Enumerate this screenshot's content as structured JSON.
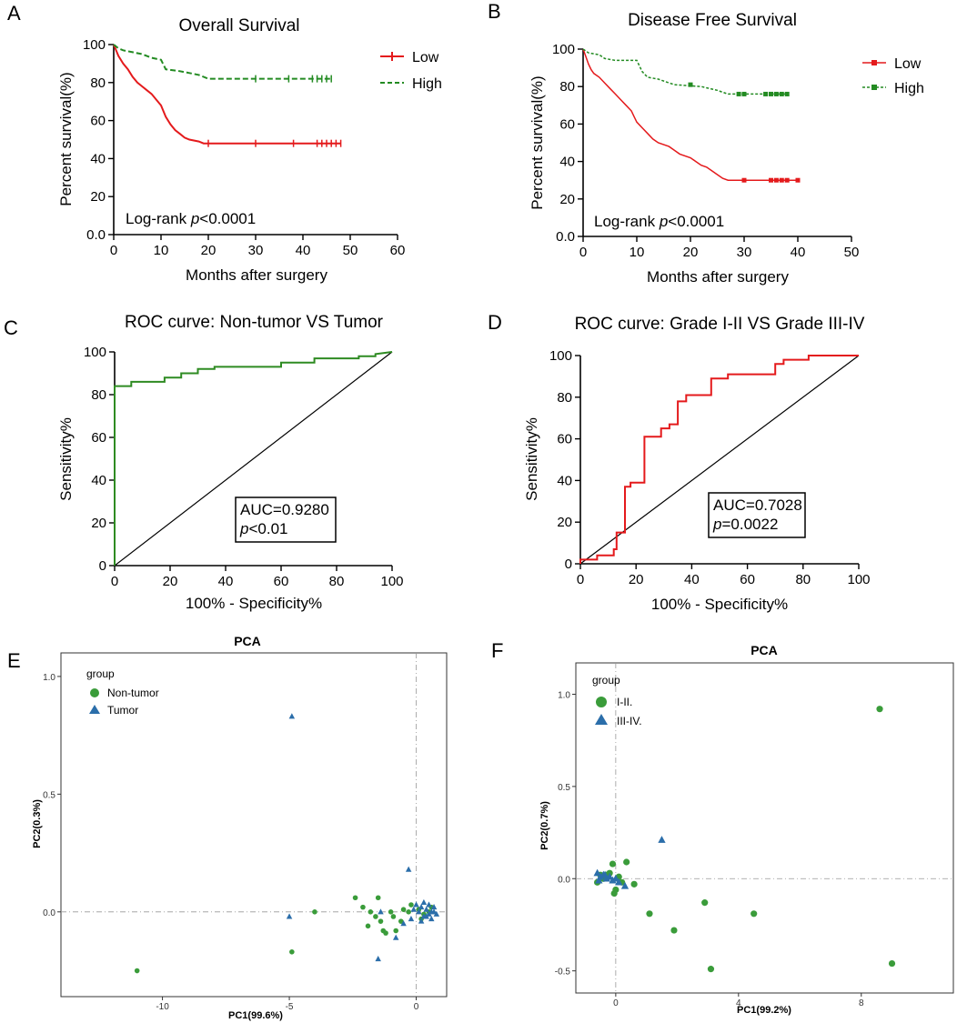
{
  "chart_data": [
    {
      "panel": "A",
      "type": "line",
      "subtype": "kaplan-meier",
      "title": "Overall Survival",
      "xlabel": "Months after surgery",
      "ylabel": "Percent survival(%)",
      "xlim": [
        0,
        60
      ],
      "ylim": [
        0,
        100
      ],
      "xticks": [
        "0",
        "10",
        "20",
        "30",
        "40",
        "50",
        "60"
      ],
      "yticks": [
        "0.0",
        "20",
        "40",
        "60",
        "80",
        "100"
      ],
      "annotation_prefix": "Log-rank ",
      "annotation_p": "p",
      "annotation_value": "<0.0001",
      "legend": [
        "Low",
        "High"
      ],
      "series": [
        {
          "name": "Low",
          "color": "#e41a1c",
          "dashed": false,
          "points": [
            [
              0,
              100
            ],
            [
              0.5,
              97
            ],
            [
              1,
              94
            ],
            [
              2,
              90
            ],
            [
              3,
              87
            ],
            [
              4,
              83
            ],
            [
              5,
              80
            ],
            [
              6,
              78
            ],
            [
              7,
              76
            ],
            [
              8,
              74
            ],
            [
              9,
              71
            ],
            [
              10,
              68
            ],
            [
              11,
              62
            ],
            [
              12,
              58
            ],
            [
              13,
              55
            ],
            [
              14,
              53
            ],
            [
              15,
              51
            ],
            [
              16,
              50
            ],
            [
              18,
              49
            ],
            [
              19,
              48
            ],
            [
              20,
              48
            ],
            [
              48,
              48
            ]
          ],
          "censor": [
            20,
            30,
            38,
            43,
            44,
            45,
            46,
            47,
            48
          ]
        },
        {
          "name": "High",
          "color": "#238b22",
          "dashed": true,
          "points": [
            [
              0,
              100
            ],
            [
              1,
              98
            ],
            [
              2,
              97
            ],
            [
              4,
              96
            ],
            [
              6,
              95
            ],
            [
              8,
              93
            ],
            [
              10,
              92
            ],
            [
              11,
              87
            ],
            [
              14,
              86
            ],
            [
              16,
              85
            ],
            [
              18,
              84
            ],
            [
              19,
              83
            ],
            [
              20,
              82
            ],
            [
              46,
              82
            ]
          ],
          "censor": [
            30,
            37,
            42,
            43,
            44,
            45,
            46
          ]
        }
      ]
    },
    {
      "panel": "B",
      "type": "line",
      "subtype": "kaplan-meier",
      "title": "Disease Free Survival",
      "xlabel": "Months after surgery",
      "ylabel": "Percent survival(%)",
      "xlim": [
        0,
        50
      ],
      "ylim": [
        0,
        100
      ],
      "xticks": [
        "0",
        "10",
        "20",
        "30",
        "40",
        "50"
      ],
      "yticks": [
        "0.0",
        "20",
        "40",
        "60",
        "80",
        "100"
      ],
      "annotation_prefix": "Log-rank ",
      "annotation_p": "p",
      "annotation_value": "<0.0001",
      "legend": [
        "Low",
        "High"
      ],
      "series": [
        {
          "name": "Low",
          "color": "#e41a1c",
          "dashed": false,
          "points": [
            [
              0,
              100
            ],
            [
              0.5,
              96
            ],
            [
              1,
              92
            ],
            [
              1.5,
              89
            ],
            [
              2,
              87
            ],
            [
              3,
              85
            ],
            [
              4,
              82
            ],
            [
              5,
              79
            ],
            [
              6,
              76
            ],
            [
              7,
              73
            ],
            [
              8,
              70
            ],
            [
              9,
              67
            ],
            [
              9.5,
              64
            ],
            [
              10,
              61
            ],
            [
              11,
              58
            ],
            [
              12,
              55
            ],
            [
              13,
              52
            ],
            [
              14,
              50
            ],
            [
              16,
              48
            ],
            [
              17,
              46
            ],
            [
              18,
              44
            ],
            [
              20,
              42
            ],
            [
              21,
              40
            ],
            [
              22,
              38
            ],
            [
              23,
              37
            ],
            [
              24,
              35
            ],
            [
              25,
              33
            ],
            [
              26,
              31
            ],
            [
              27,
              30
            ],
            [
              40,
              30
            ]
          ],
          "censor": [
            30,
            35,
            36,
            37,
            38,
            40
          ]
        },
        {
          "name": "High",
          "color": "#238b22",
          "dashed": true,
          "points": [
            [
              0,
              100
            ],
            [
              1,
              98
            ],
            [
              3,
              97
            ],
            [
              4,
              95
            ],
            [
              6,
              94
            ],
            [
              10,
              94
            ],
            [
              11,
              88
            ],
            [
              12,
              85
            ],
            [
              14,
              84
            ],
            [
              16,
              82
            ],
            [
              17,
              81
            ],
            [
              22,
              80
            ],
            [
              25,
              78
            ],
            [
              26,
              77
            ],
            [
              27,
              76
            ],
            [
              38,
              76
            ]
          ],
          "censor": [
            20,
            29,
            30,
            34,
            35,
            36,
            37,
            38
          ]
        }
      ]
    },
    {
      "panel": "C",
      "type": "line",
      "subtype": "roc",
      "title": "ROC curve: Non-tumor VS Tumor",
      "xlabel": "100% - Specificity%",
      "ylabel": "Sensitivity%",
      "xlim": [
        0,
        100
      ],
      "ylim": [
        0,
        100
      ],
      "xticks": [
        "0",
        "20",
        "40",
        "60",
        "80",
        "100"
      ],
      "yticks": [
        "0",
        "20",
        "40",
        "60",
        "80",
        "100"
      ],
      "auc_text": "AUC=0.9280",
      "p_prefix": "p",
      "p_value": "<0.01",
      "color": "#2e8b22",
      "points": [
        [
          0,
          0
        ],
        [
          0,
          84
        ],
        [
          6,
          84
        ],
        [
          6,
          86
        ],
        [
          18,
          86
        ],
        [
          18,
          88
        ],
        [
          24,
          88
        ],
        [
          24,
          90
        ],
        [
          30,
          90
        ],
        [
          30,
          92
        ],
        [
          36,
          92
        ],
        [
          36,
          93
        ],
        [
          60,
          93
        ],
        [
          60,
          95
        ],
        [
          72,
          95
        ],
        [
          72,
          97
        ],
        [
          88,
          97
        ],
        [
          88,
          98
        ],
        [
          94,
          98
        ],
        [
          94,
          99
        ],
        [
          100,
          100
        ]
      ]
    },
    {
      "panel": "D",
      "type": "line",
      "subtype": "roc",
      "title": "ROC curve: Grade I-II VS Grade III-IV",
      "xlabel": "100% - Specificity%",
      "ylabel": "Sensitivity%",
      "xlim": [
        0,
        100
      ],
      "ylim": [
        0,
        100
      ],
      "xticks": [
        "0",
        "20",
        "40",
        "60",
        "80",
        "100"
      ],
      "yticks": [
        "0",
        "20",
        "40",
        "60",
        "80",
        "100"
      ],
      "auc_text": "AUC=0.7028",
      "p_prefix": "p",
      "p_value": "=0.0022",
      "color": "#e41a1c",
      "points": [
        [
          0,
          0
        ],
        [
          0,
          2
        ],
        [
          6,
          2
        ],
        [
          6,
          4
        ],
        [
          12,
          4
        ],
        [
          12,
          7
        ],
        [
          13,
          7
        ],
        [
          13,
          15
        ],
        [
          16,
          15
        ],
        [
          16,
          37
        ],
        [
          18,
          37
        ],
        [
          18,
          39
        ],
        [
          23,
          39
        ],
        [
          23,
          61
        ],
        [
          29,
          61
        ],
        [
          29,
          65
        ],
        [
          32,
          65
        ],
        [
          32,
          67
        ],
        [
          35,
          67
        ],
        [
          35,
          78
        ],
        [
          38,
          78
        ],
        [
          38,
          81
        ],
        [
          41,
          81
        ],
        [
          41,
          81
        ],
        [
          47,
          81
        ],
        [
          47,
          89
        ],
        [
          53,
          89
        ],
        [
          53,
          91
        ],
        [
          70,
          91
        ],
        [
          70,
          96
        ],
        [
          73,
          96
        ],
        [
          73,
          98
        ],
        [
          82,
          98
        ],
        [
          82,
          100
        ],
        [
          100,
          100
        ]
      ]
    },
    {
      "panel": "E",
      "type": "scatter",
      "title": "PCA",
      "xlabel": "PC1(99.6%)",
      "ylabel": "PC2(0.3%)",
      "xlim": [
        -14,
        1.2
      ],
      "ylim": [
        -0.36,
        1.1
      ],
      "xticks": [
        -10,
        -5,
        0
      ],
      "xtick_labels": [
        "-10",
        "-5",
        "0"
      ],
      "yticks": [
        0,
        0.5,
        1
      ],
      "ytick_labels": [
        "0.0",
        "0.5",
        "1.0"
      ],
      "legend_title": "group",
      "series": [
        {
          "name": "Non-tumor",
          "marker": "circle",
          "color": "#3a9c3a",
          "points": [
            [
              -11,
              -0.25
            ],
            [
              -4.9,
              -0.17
            ],
            [
              -4.0,
              0.0
            ],
            [
              -2.4,
              0.06
            ],
            [
              -2.1,
              0.02
            ],
            [
              -1.8,
              0.0
            ],
            [
              -1.6,
              -0.02
            ],
            [
              -1.4,
              -0.04
            ],
            [
              -1.3,
              -0.08
            ],
            [
              -1.2,
              -0.09
            ],
            [
              -1.0,
              0.0
            ],
            [
              -0.9,
              -0.02
            ],
            [
              -0.8,
              -0.08
            ],
            [
              -0.6,
              -0.04
            ],
            [
              -0.3,
              0.0
            ],
            [
              -0.2,
              0.03
            ],
            [
              0.1,
              0.01
            ],
            [
              0.3,
              -0.01
            ],
            [
              0.5,
              0.0
            ],
            [
              0.6,
              0.02
            ],
            [
              -1.5,
              0.06
            ],
            [
              -0.5,
              0.01
            ],
            [
              0.2,
              -0.03
            ],
            [
              -1.9,
              -0.06
            ]
          ]
        },
        {
          "name": "Tumor",
          "marker": "triangle",
          "color": "#2b6eaa",
          "points": [
            [
              -4.9,
              0.83
            ],
            [
              -5.0,
              -0.02
            ],
            [
              -0.3,
              0.18
            ],
            [
              -1.5,
              -0.2
            ],
            [
              -0.8,
              -0.11
            ],
            [
              -1.4,
              0.0
            ],
            [
              -0.5,
              -0.05
            ],
            [
              -0.2,
              -0.03
            ],
            [
              0.0,
              0.03
            ],
            [
              0.1,
              0.0
            ],
            [
              0.2,
              0.02
            ],
            [
              0.3,
              -0.02
            ],
            [
              0.4,
              0.01
            ],
            [
              0.5,
              -0.01
            ],
            [
              0.6,
              0.0
            ],
            [
              0.7,
              0.02
            ],
            [
              0.8,
              -0.01
            ],
            [
              0.3,
              0.04
            ],
            [
              0.5,
              0.03
            ],
            [
              0.2,
              -0.04
            ],
            [
              -0.1,
              0.01
            ],
            [
              0.6,
              -0.03
            ],
            [
              0.4,
              -0.02
            ],
            [
              0.7,
              0.0
            ]
          ]
        }
      ]
    },
    {
      "panel": "F",
      "type": "scatter",
      "title": "PCA",
      "xlabel": "PC1(99.2%)",
      "ylabel": "PC2(0.7%)",
      "xlim": [
        -1.3,
        11.0
      ],
      "ylim": [
        -0.62,
        1.17
      ],
      "xticks": [
        0,
        4,
        8
      ],
      "xtick_labels": [
        "0",
        "4",
        "8"
      ],
      "yticks": [
        -0.5,
        0,
        0.5,
        1
      ],
      "ytick_labels": [
        "-0.5",
        "0.0",
        "0.5",
        "1.0"
      ],
      "legend_title": "group",
      "series": [
        {
          "name": "I-II.",
          "marker": "circle",
          "color": "#3a9c3a",
          "points": [
            [
              8.6,
              0.92
            ],
            [
              0.35,
              0.09
            ],
            [
              -0.1,
              0.08
            ],
            [
              0.6,
              -0.03
            ],
            [
              0.0,
              -0.06
            ],
            [
              -0.05,
              -0.08
            ],
            [
              1.1,
              -0.19
            ],
            [
              1.9,
              -0.28
            ],
            [
              2.9,
              -0.13
            ],
            [
              4.5,
              -0.19
            ],
            [
              3.1,
              -0.49
            ],
            [
              9.0,
              -0.46
            ],
            [
              -0.5,
              0.02
            ],
            [
              -0.3,
              0.02
            ],
            [
              -0.6,
              -0.02
            ],
            [
              -0.4,
              0.0
            ],
            [
              0.1,
              0.01
            ],
            [
              0.2,
              -0.02
            ],
            [
              -0.2,
              0.03
            ]
          ]
        },
        {
          "name": "III-IV.",
          "marker": "triangle",
          "color": "#2b6eaa",
          "points": [
            [
              1.5,
              0.21
            ],
            [
              -0.6,
              0.03
            ],
            [
              -0.5,
              0.01
            ],
            [
              -0.4,
              0.02
            ],
            [
              -0.3,
              0.0
            ],
            [
              -0.2,
              0.01
            ],
            [
              -0.1,
              -0.01
            ],
            [
              0.0,
              0.0
            ],
            [
              0.1,
              -0.02
            ],
            [
              0.3,
              -0.04
            ],
            [
              -0.55,
              -0.01
            ],
            [
              -0.35,
              0.02
            ]
          ]
        }
      ]
    }
  ]
}
